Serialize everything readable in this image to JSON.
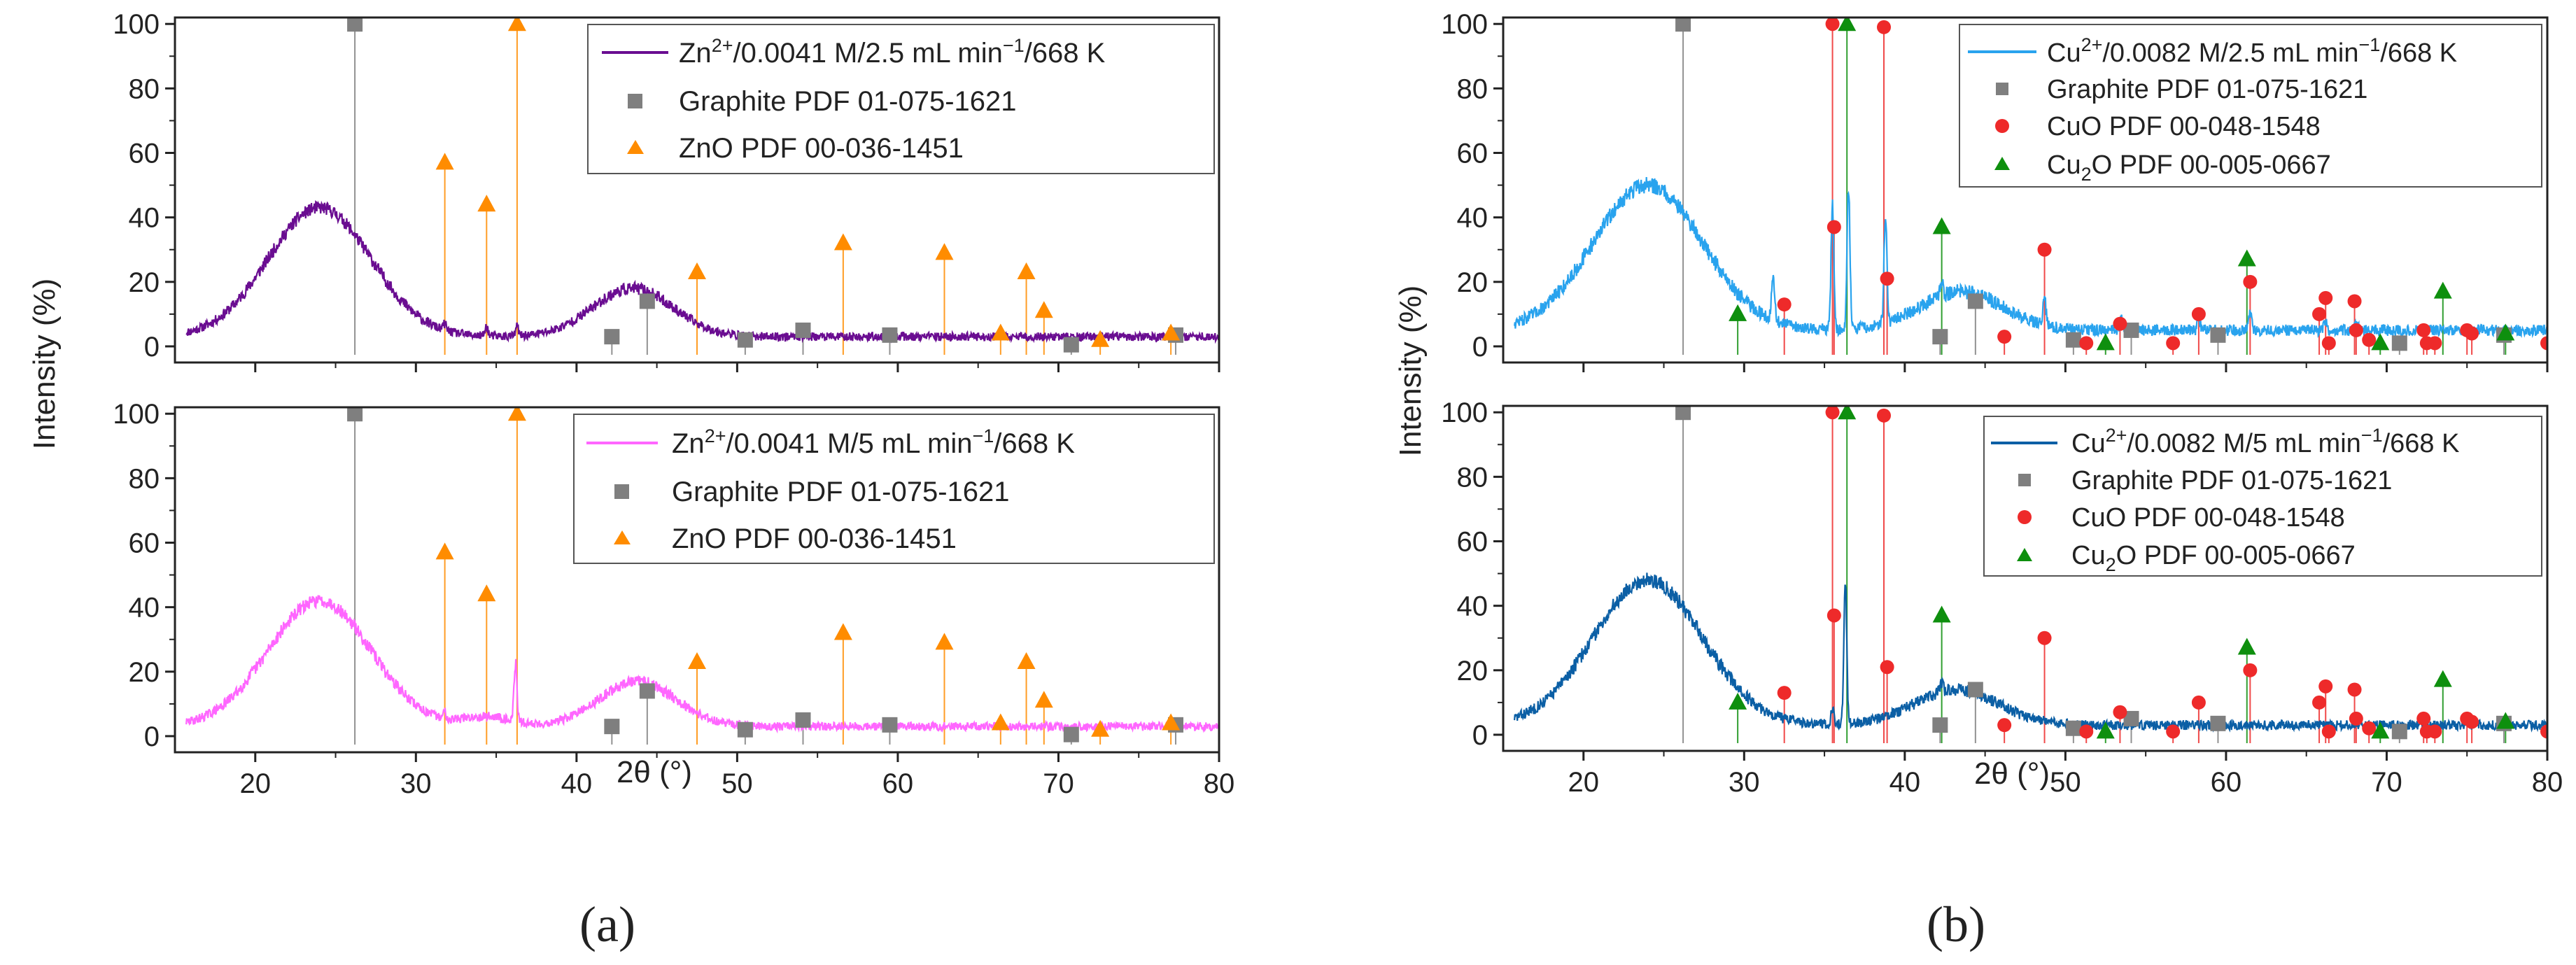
{
  "colors": {
    "zn_a": "#6a0d91",
    "zn_b": "#ff66ff",
    "cu_a": "#29a3ee",
    "cu_b": "#0b5fa5",
    "graphite": "#7f7f7f",
    "zno": "#ff8c00",
    "cuo": "#ee2a2a",
    "cu2o": "#0e8f0e"
  },
  "chart_data": [
    {
      "panel": "a",
      "panel_label": "(a)",
      "type": "line",
      "xlabel": "2θ (°)",
      "ylabel": "Intensity (%)",
      "xlim": [
        15,
        80
      ],
      "ylim": [
        -5,
        102
      ],
      "xticks": [
        20,
        30,
        40,
        50,
        60,
        70,
        80
      ],
      "yticks": [
        0,
        20,
        40,
        60,
        80,
        100
      ],
      "subplots": [
        {
          "id": "a-top",
          "legend": {
            "series_prefix": "Zn",
            "series_sup": "2+",
            "series_suffix": "/0.0041 M/2.5 mL min",
            "series_sup2": "−1",
            "series_tail": "/668 K",
            "ref1": "Graphite PDF 01-075-1621",
            "ref2": "ZnO PDF 00-036-1451"
          },
          "series_color_key": "zn_a",
          "baseline": 3,
          "bumps": [
            [
              24,
              40,
              3.2
            ],
            [
              43.5,
              15,
              2.5
            ]
          ],
          "sharp": [
            [
              34.4,
              3
            ],
            [
              36.3,
              3
            ],
            [
              31.8,
              2
            ]
          ],
          "noise": 2.0,
          "seed": 11,
          "references": [
            {
              "name": "Graphite",
              "marker": "square",
              "color_key": "graphite",
              "peaks": [
                [
                  26.2,
                  100
                ],
                [
                  42.2,
                  3
                ],
                [
                  44.4,
                  14
                ],
                [
                  50.5,
                  2
                ],
                [
                  54.1,
                  5
                ],
                [
                  59.5,
                  3.5
                ],
                [
                  70.8,
                  0.5
                ],
                [
                  77.3,
                  3.5
                ]
              ]
            },
            {
              "name": "ZnO",
              "marker": "triangle",
              "color_key": "zno",
              "peaks": [
                [
                  31.8,
                  57
                ],
                [
                  34.4,
                  44
                ],
                [
                  36.3,
                  100
                ],
                [
                  47.5,
                  23
                ],
                [
                  56.6,
                  32
                ],
                [
                  62.9,
                  29
                ],
                [
                  66.4,
                  4
                ],
                [
                  68.0,
                  23
                ],
                [
                  69.1,
                  11
                ],
                [
                  72.6,
                  2
                ],
                [
                  77.0,
                  4
                ]
              ]
            }
          ]
        },
        {
          "id": "a-bottom",
          "legend": {
            "series_prefix": "Zn",
            "series_sup": "2+",
            "series_suffix": "/0.0041 M/5 mL min",
            "series_sup2": "−1",
            "series_tail": "/668 K",
            "ref1": "Graphite PDF 01-075-1621",
            "ref2": "ZnO PDF 00-036-1451"
          },
          "series_color_key": "zn_b",
          "baseline": 3,
          "bumps": [
            [
              24,
              39,
              3.2
            ],
            [
              43.8,
              14,
              2.4
            ],
            [
              34.5,
              3,
              1.5
            ]
          ],
          "sharp": [
            [
              36.2,
              18
            ],
            [
              31.8,
              2
            ]
          ],
          "noise": 2.0,
          "seed": 29,
          "references": [
            {
              "name": "Graphite",
              "marker": "square",
              "color_key": "graphite",
              "peaks": [
                [
                  26.2,
                  100
                ],
                [
                  42.2,
                  3
                ],
                [
                  44.4,
                  14
                ],
                [
                  50.5,
                  2
                ],
                [
                  54.1,
                  5
                ],
                [
                  59.5,
                  3.5
                ],
                [
                  70.8,
                  0.5
                ],
                [
                  77.3,
                  3.5
                ]
              ]
            },
            {
              "name": "ZnO",
              "marker": "triangle",
              "color_key": "zno",
              "peaks": [
                [
                  31.8,
                  57
                ],
                [
                  34.4,
                  44
                ],
                [
                  36.3,
                  100
                ],
                [
                  47.5,
                  23
                ],
                [
                  56.6,
                  32
                ],
                [
                  62.9,
                  29
                ],
                [
                  66.4,
                  4
                ],
                [
                  68.0,
                  23
                ],
                [
                  69.1,
                  11
                ],
                [
                  72.6,
                  2
                ],
                [
                  77.0,
                  4
                ]
              ]
            }
          ]
        }
      ]
    },
    {
      "panel": "b",
      "panel_label": "(b)",
      "type": "line",
      "xlabel": "2θ (°)",
      "ylabel": "Intensity (%)",
      "xlim": [
        15,
        80
      ],
      "ylim": [
        -5,
        102
      ],
      "xticks": [
        20,
        30,
        40,
        50,
        60,
        70,
        80
      ],
      "yticks": [
        0,
        20,
        40,
        60,
        80,
        100
      ],
      "subplots": [
        {
          "id": "b-top",
          "legend": {
            "series_prefix": "Cu",
            "series_sup": "2+",
            "series_suffix": "/0.0082 M/2.5 mL min",
            "series_sup2": "−1",
            "series_tail": "/668 K",
            "ref1": "Graphite PDF 01-075-1621",
            "ref2": "CuO PDF 00-048-1548",
            "ref3_prefix": "Cu",
            "ref3_sub": "2",
            "ref3_suffix": "O PDF 00-005-0667"
          },
          "series_color_key": "cu_a",
          "baseline": 5,
          "bumps": [
            [
              24,
              45,
              3.4
            ],
            [
              43.5,
              12,
              2.6
            ]
          ],
          "sharp": [
            [
              35.5,
              38
            ],
            [
              36.5,
              44
            ],
            [
              38.8,
              34
            ],
            [
              31.8,
              15
            ],
            [
              48.7,
              8
            ],
            [
              42.3,
              5
            ],
            [
              61.5,
              6
            ],
            [
              53.5,
              3
            ],
            [
              58.3,
              3
            ],
            [
              66.2,
              3
            ],
            [
              68.1,
              3
            ]
          ],
          "noise": 2.5,
          "seed": 47,
          "references": [
            {
              "name": "Graphite",
              "marker": "square",
              "color_key": "graphite",
              "peaks": [
                [
                  26.2,
                  100
                ],
                [
                  42.2,
                  3
                ],
                [
                  44.4,
                  14
                ],
                [
                  50.5,
                  2
                ],
                [
                  54.1,
                  5
                ],
                [
                  59.5,
                  3.5
                ],
                [
                  70.8,
                  1
                ],
                [
                  77.3,
                  3.5
                ]
              ]
            },
            {
              "name": "CuO",
              "marker": "circle",
              "color_key": "cuo",
              "peaks": [
                [
                  32.5,
                  13
                ],
                [
                  35.5,
                  100
                ],
                [
                  35.6,
                  37
                ],
                [
                  38.7,
                  99
                ],
                [
                  38.9,
                  21
                ],
                [
                  46.2,
                  3
                ],
                [
                  48.7,
                  30
                ],
                [
                  51.3,
                  1
                ],
                [
                  53.4,
                  7
                ],
                [
                  56.7,
                  1
                ],
                [
                  58.3,
                  10
                ],
                [
                  61.5,
                  20
                ],
                [
                  65.8,
                  10
                ],
                [
                  66.2,
                  15
                ],
                [
                  66.4,
                  1
                ],
                [
                  68.0,
                  14
                ],
                [
                  68.1,
                  5
                ],
                [
                  68.9,
                  2
                ],
                [
                  72.3,
                  5
                ],
                [
                  72.5,
                  1
                ],
                [
                  73.0,
                  1
                ],
                [
                  75.0,
                  5
                ],
                [
                  75.3,
                  4
                ],
                [
                  80.0,
                  1
                ]
              ]
            },
            {
              "name": "Cu2O",
              "marker": "triangle",
              "color_key": "cu2o",
              "peaks": [
                [
                  29.6,
                  10
                ],
                [
                  36.4,
                  100
                ],
                [
                  42.3,
                  37
                ],
                [
                  52.5,
                  1
                ],
                [
                  61.3,
                  27
                ],
                [
                  69.6,
                  1
                ],
                [
                  73.5,
                  17
                ],
                [
                  77.4,
                  4
                ]
              ]
            }
          ]
        },
        {
          "id": "b-bottom",
          "legend": {
            "series_prefix": "Cu",
            "series_sup": "2+",
            "series_suffix": "/0.0082 M/5 mL min",
            "series_sup2": "−1",
            "series_tail": "/668 K",
            "ref1": "Graphite PDF 01-075-1621",
            "ref2": "CuO PDF 00-048-1548",
            "ref3_prefix": "Cu",
            "ref3_sub": "2",
            "ref3_suffix": "O PDF 00-005-0667"
          },
          "series_color_key": "cu_b",
          "baseline": 3,
          "bumps": [
            [
              24,
              45,
              3.4
            ],
            [
              43.2,
              11,
              2.6
            ]
          ],
          "sharp": [
            [
              36.3,
              44
            ],
            [
              35.5,
              5
            ],
            [
              42.3,
              3
            ]
          ],
          "noise": 2.3,
          "seed": 83,
          "references": [
            {
              "name": "Graphite",
              "marker": "square",
              "color_key": "graphite",
              "peaks": [
                [
                  26.2,
                  100
                ],
                [
                  42.2,
                  3
                ],
                [
                  44.4,
                  14
                ],
                [
                  50.5,
                  2
                ],
                [
                  54.1,
                  5
                ],
                [
                  59.5,
                  3.5
                ],
                [
                  70.8,
                  1
                ],
                [
                  77.3,
                  3.5
                ]
              ]
            },
            {
              "name": "CuO",
              "marker": "circle",
              "color_key": "cuo",
              "peaks": [
                [
                  32.5,
                  13
                ],
                [
                  35.5,
                  100
                ],
                [
                  35.6,
                  37
                ],
                [
                  38.7,
                  99
                ],
                [
                  38.9,
                  21
                ],
                [
                  46.2,
                  3
                ],
                [
                  48.7,
                  30
                ],
                [
                  51.3,
                  1
                ],
                [
                  53.4,
                  7
                ],
                [
                  56.7,
                  1
                ],
                [
                  58.3,
                  10
                ],
                [
                  61.5,
                  20
                ],
                [
                  65.8,
                  10
                ],
                [
                  66.2,
                  15
                ],
                [
                  66.4,
                  1
                ],
                [
                  68.0,
                  14
                ],
                [
                  68.1,
                  5
                ],
                [
                  68.9,
                  2
                ],
                [
                  72.3,
                  5
                ],
                [
                  72.5,
                  1
                ],
                [
                  73.0,
                  1
                ],
                [
                  75.0,
                  5
                ],
                [
                  75.3,
                  4
                ],
                [
                  80.0,
                  1
                ]
              ]
            },
            {
              "name": "Cu2O",
              "marker": "triangle",
              "color_key": "cu2o",
              "peaks": [
                [
                  29.6,
                  10
                ],
                [
                  36.4,
                  100
                ],
                [
                  42.3,
                  37
                ],
                [
                  52.5,
                  1
                ],
                [
                  61.3,
                  27
                ],
                [
                  69.6,
                  1
                ],
                [
                  73.5,
                  17
                ],
                [
                  77.4,
                  4
                ]
              ]
            }
          ]
        }
      ]
    }
  ]
}
